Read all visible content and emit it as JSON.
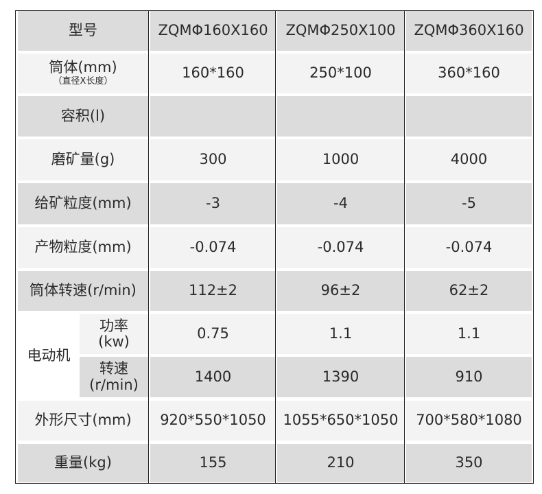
{
  "header": {
    "label": "型号",
    "models": [
      "ZQMΦ160X160",
      "ZQMΦ250X100",
      "ZQMΦ360X160"
    ]
  },
  "rows": [
    {
      "label": "筒体(mm)",
      "sublabel": "（直径X长度）",
      "values": [
        "160*160",
        "250*100",
        "360*160"
      ]
    },
    {
      "label": "容积(l)",
      "values": [
        "",
        "",
        ""
      ]
    },
    {
      "label": "磨矿量(g)",
      "values": [
        "300",
        "1000",
        "4000"
      ]
    },
    {
      "label": "给矿粒度(mm)",
      "values": [
        "-3",
        "-4",
        "-5"
      ]
    },
    {
      "label": "产物粒度(mm)",
      "values": [
        "-0.074",
        "-0.074",
        "-0.074"
      ]
    },
    {
      "label": "筒体转速(r/min)",
      "values": [
        "112±2",
        "96±2",
        "62±2"
      ]
    }
  ],
  "motor": {
    "label": "电动机",
    "power": {
      "label": "功率",
      "unit": "(kw)",
      "values": [
        "0.75",
        "1.1",
        "1.1"
      ]
    },
    "speed": {
      "label": "转速",
      "unit": "(r/min)",
      "values": [
        "1400",
        "1390",
        "910"
      ]
    }
  },
  "tail": [
    {
      "label": "外形尺寸(mm)",
      "values": [
        "920*550*1050",
        "1055*650*1050",
        "700*580*1080"
      ]
    },
    {
      "label": "重量(kg)",
      "values": [
        "155",
        "210",
        "350"
      ]
    }
  ]
}
